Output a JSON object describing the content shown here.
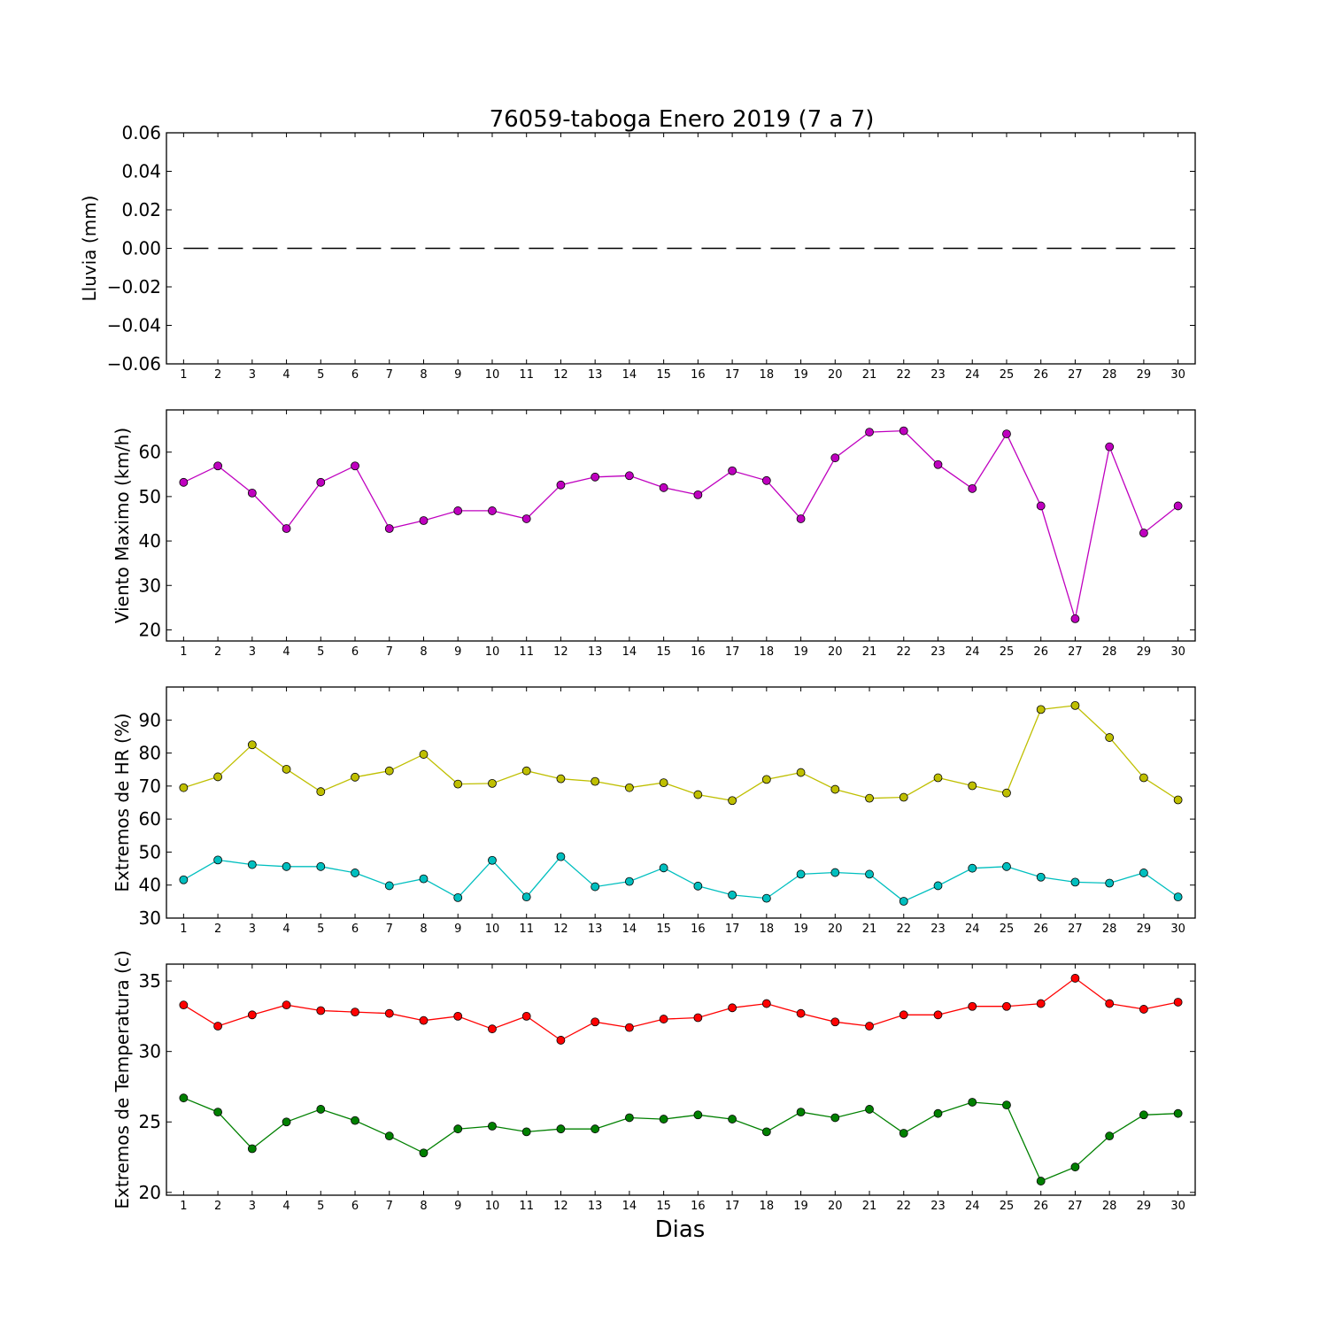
{
  "figure": {
    "title": "76059-taboga Enero 2019  (7 a 7)",
    "xlabel": "Dias"
  },
  "chart_data": [
    {
      "type": "line",
      "ylabel": "Lluvia (mm)",
      "x": [
        1,
        2,
        3,
        4,
        5,
        6,
        7,
        8,
        9,
        10,
        11,
        12,
        13,
        14,
        15,
        16,
        17,
        18,
        19,
        20,
        21,
        22,
        23,
        24,
        25,
        26,
        27,
        28,
        29,
        30
      ],
      "xlim": [
        0.5,
        30.5
      ],
      "ylim": [
        -0.06,
        0.06
      ],
      "yticks": [
        -0.06,
        -0.04,
        -0.02,
        0.0,
        0.02,
        0.04,
        0.06
      ],
      "ytick_labels": [
        "−0.06",
        "−0.04",
        "−0.02",
        "0.00",
        "0.02",
        "0.04",
        "0.06"
      ],
      "series": [
        {
          "values": [
            0,
            0,
            0,
            0,
            0,
            0,
            0,
            0,
            0,
            0,
            0,
            0,
            0,
            0,
            0,
            0,
            0,
            0,
            0,
            0,
            0,
            0,
            0,
            0,
            0,
            0,
            0,
            0,
            0,
            0
          ],
          "color": "#000000",
          "style": "dashed",
          "marker": false
        }
      ]
    },
    {
      "type": "line",
      "ylabel": "Viento Maximo (km/h)",
      "x": [
        1,
        2,
        3,
        4,
        5,
        6,
        7,
        8,
        9,
        10,
        11,
        12,
        13,
        14,
        15,
        16,
        17,
        18,
        19,
        20,
        21,
        22,
        23,
        24,
        25,
        26,
        27,
        28,
        29,
        30
      ],
      "xlim": [
        0.5,
        30.5
      ],
      "ylim": [
        17.5,
        69.5
      ],
      "yticks": [
        20,
        30,
        40,
        50,
        60
      ],
      "ytick_labels": [
        "20",
        "30",
        "40",
        "50",
        "60"
      ],
      "series": [
        {
          "values": [
            53.2,
            56.9,
            50.8,
            42.8,
            53.2,
            56.9,
            42.8,
            44.6,
            46.8,
            46.8,
            45.0,
            52.6,
            54.4,
            54.7,
            52.0,
            50.4,
            55.8,
            53.6,
            45.0,
            58.7,
            64.5,
            64.8,
            57.2,
            51.8,
            64.1,
            47.9,
            22.5,
            61.2,
            41.8,
            47.9
          ],
          "color": "#bf00bf",
          "style": "solid",
          "marker": true
        }
      ]
    },
    {
      "type": "line",
      "ylabel": "Extremos de HR (%)",
      "x": [
        1,
        2,
        3,
        4,
        5,
        6,
        7,
        8,
        9,
        10,
        11,
        12,
        13,
        14,
        15,
        16,
        17,
        18,
        19,
        20,
        21,
        22,
        23,
        24,
        25,
        26,
        27,
        28,
        29,
        30
      ],
      "xlim": [
        0.5,
        30.5
      ],
      "ylim": [
        30,
        100
      ],
      "yticks": [
        30,
        40,
        50,
        60,
        70,
        80,
        90
      ],
      "ytick_labels": [
        "30",
        "40",
        "50",
        "60",
        "70",
        "80",
        "90"
      ],
      "series": [
        {
          "values": [
            69.5,
            72.8,
            82.5,
            75.1,
            68.3,
            72.7,
            74.6,
            79.6,
            70.6,
            70.8,
            74.6,
            72.2,
            71.4,
            69.5,
            71.0,
            67.4,
            65.6,
            72.0,
            74.1,
            69.0,
            66.3,
            66.6,
            72.5,
            70.1,
            67.9,
            93.2,
            94.4,
            84.7,
            72.5,
            65.8
          ],
          "color": "#bfbf00",
          "style": "solid",
          "marker": true
        },
        {
          "values": [
            41.6,
            47.6,
            46.2,
            45.6,
            45.6,
            43.7,
            39.8,
            41.9,
            36.2,
            47.5,
            36.4,
            48.6,
            39.5,
            41.1,
            45.2,
            39.7,
            37.0,
            36.0,
            43.3,
            43.8,
            43.3,
            35.1,
            39.8,
            45.1,
            45.6,
            42.4,
            40.9,
            40.6,
            43.7,
            36.4
          ],
          "color": "#00bfbf",
          "style": "solid",
          "marker": true
        }
      ]
    },
    {
      "type": "line",
      "ylabel": "Extremos de Temperatura (c)",
      "x": [
        1,
        2,
        3,
        4,
        5,
        6,
        7,
        8,
        9,
        10,
        11,
        12,
        13,
        14,
        15,
        16,
        17,
        18,
        19,
        20,
        21,
        22,
        23,
        24,
        25,
        26,
        27,
        28,
        29,
        30
      ],
      "xlim": [
        0.5,
        30.5
      ],
      "ylim": [
        19.8,
        36.2
      ],
      "yticks": [
        20,
        25,
        30,
        35
      ],
      "ytick_labels": [
        "20",
        "25",
        "30",
        "35"
      ],
      "series": [
        {
          "values": [
            33.3,
            31.8,
            32.6,
            33.3,
            32.9,
            32.8,
            32.7,
            32.2,
            32.5,
            31.6,
            32.5,
            30.8,
            32.1,
            31.7,
            32.3,
            32.4,
            33.1,
            33.4,
            32.7,
            32.1,
            31.8,
            32.6,
            32.6,
            33.2,
            33.2,
            33.4,
            35.2,
            33.4,
            33.0,
            33.5
          ],
          "color": "#ff0000",
          "style": "solid",
          "marker": true
        },
        {
          "values": [
            26.7,
            25.7,
            23.1,
            25.0,
            25.9,
            25.1,
            24.0,
            22.8,
            24.5,
            24.7,
            24.3,
            24.5,
            24.5,
            25.3,
            25.2,
            25.5,
            25.2,
            24.3,
            25.7,
            25.3,
            25.9,
            24.2,
            25.6,
            26.4,
            26.2,
            20.8,
            21.8,
            24.0,
            25.5,
            25.6
          ],
          "color": "#008000",
          "style": "solid",
          "marker": true
        }
      ]
    }
  ]
}
